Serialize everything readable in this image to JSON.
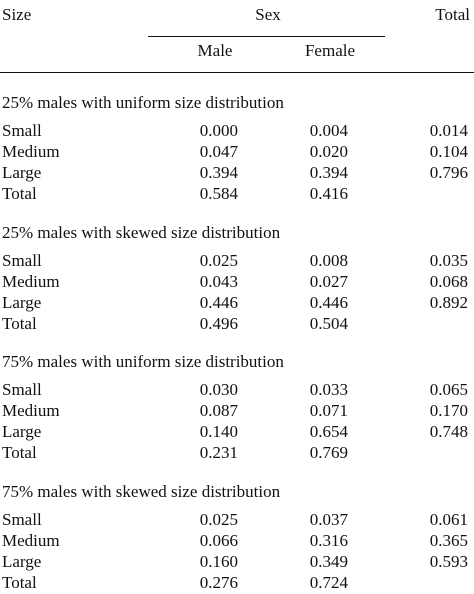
{
  "header": {
    "size": "Size",
    "sex": "Sex",
    "total": "Total",
    "male": "Male",
    "female": "Female"
  },
  "sections": [
    {
      "title": "25% males with uniform size distribution",
      "rows": [
        [
          "Small",
          "0.000",
          "0.004",
          "0.014"
        ],
        [
          "Medium",
          "0.047",
          "0.020",
          "0.104"
        ],
        [
          "Large",
          "0.394",
          "0.394",
          "0.796"
        ],
        [
          "Total",
          "0.584",
          "0.416"
        ]
      ]
    },
    {
      "title": "25% males with skewed size distribution",
      "rows": [
        [
          "Small",
          "0.025",
          "0.008",
          "0.035"
        ],
        [
          "Medium",
          "0.043",
          "0.027",
          "0.068"
        ],
        [
          "Large",
          "0.446",
          "0.446",
          "0.892"
        ],
        [
          "Total",
          "0.496",
          "0.504"
        ]
      ]
    },
    {
      "title": "75% males with uniform size distribution",
      "rows": [
        [
          "Small",
          "0.030",
          "0.033",
          "0.065"
        ],
        [
          "Medium",
          "0.087",
          "0.071",
          "0.170"
        ],
        [
          "Large",
          "0.140",
          "0.654",
          "0.748"
        ],
        [
          "Total",
          "0.231",
          "0.769"
        ]
      ]
    },
    {
      "title": "75% males with skewed size distribution",
      "rows": [
        [
          "Small",
          "0.025",
          "0.037",
          "0.061"
        ],
        [
          "Medium",
          "0.066",
          "0.316",
          "0.365"
        ],
        [
          "Large",
          "0.160",
          "0.349",
          "0.593"
        ],
        [
          "Total",
          "0.276",
          "0.724"
        ]
      ]
    }
  ]
}
